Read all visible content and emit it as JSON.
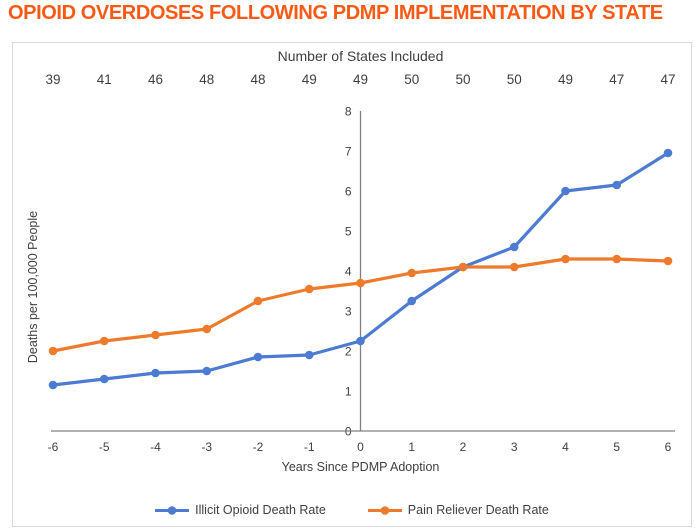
{
  "title": "OPIOID OVERDOSES FOLLOWING PDMP IMPLEMENTATION BY STATE",
  "title_color": "#F85A15",
  "chart_data": {
    "type": "line",
    "x": [
      -6,
      -5,
      -4,
      -3,
      -2,
      -1,
      0,
      1,
      2,
      3,
      4,
      5,
      6
    ],
    "top_axis": {
      "title": "Number of States Included",
      "values": [
        39,
        41,
        46,
        48,
        48,
        49,
        49,
        50,
        50,
        50,
        49,
        47,
        47
      ]
    },
    "series": [
      {
        "name": "Illicit Opioid Death Rate",
        "color": "#4C7BD2",
        "values": [
          1.15,
          1.3,
          1.45,
          1.5,
          1.85,
          1.9,
          2.25,
          3.25,
          4.1,
          4.6,
          6.0,
          6.15,
          6.95
        ]
      },
      {
        "name": "Pain Reliever Death Rate",
        "color": "#EE7B2C",
        "values": [
          2.0,
          2.25,
          2.4,
          2.55,
          3.25,
          3.55,
          3.7,
          3.95,
          4.1,
          4.1,
          4.3,
          4.3,
          4.25
        ]
      }
    ],
    "xlabel": "Years Since PDMP Adoption",
    "ylabel": "Deaths per 100,000 People",
    "ylim": [
      0,
      8
    ],
    "yticks": [
      0,
      1,
      2,
      3,
      4,
      5,
      6,
      7,
      8
    ],
    "legend_position": "bottom",
    "grid": false,
    "axis_color": "#808080",
    "text_color": "#3f3f3f",
    "border_color": "#d9d9d9"
  }
}
